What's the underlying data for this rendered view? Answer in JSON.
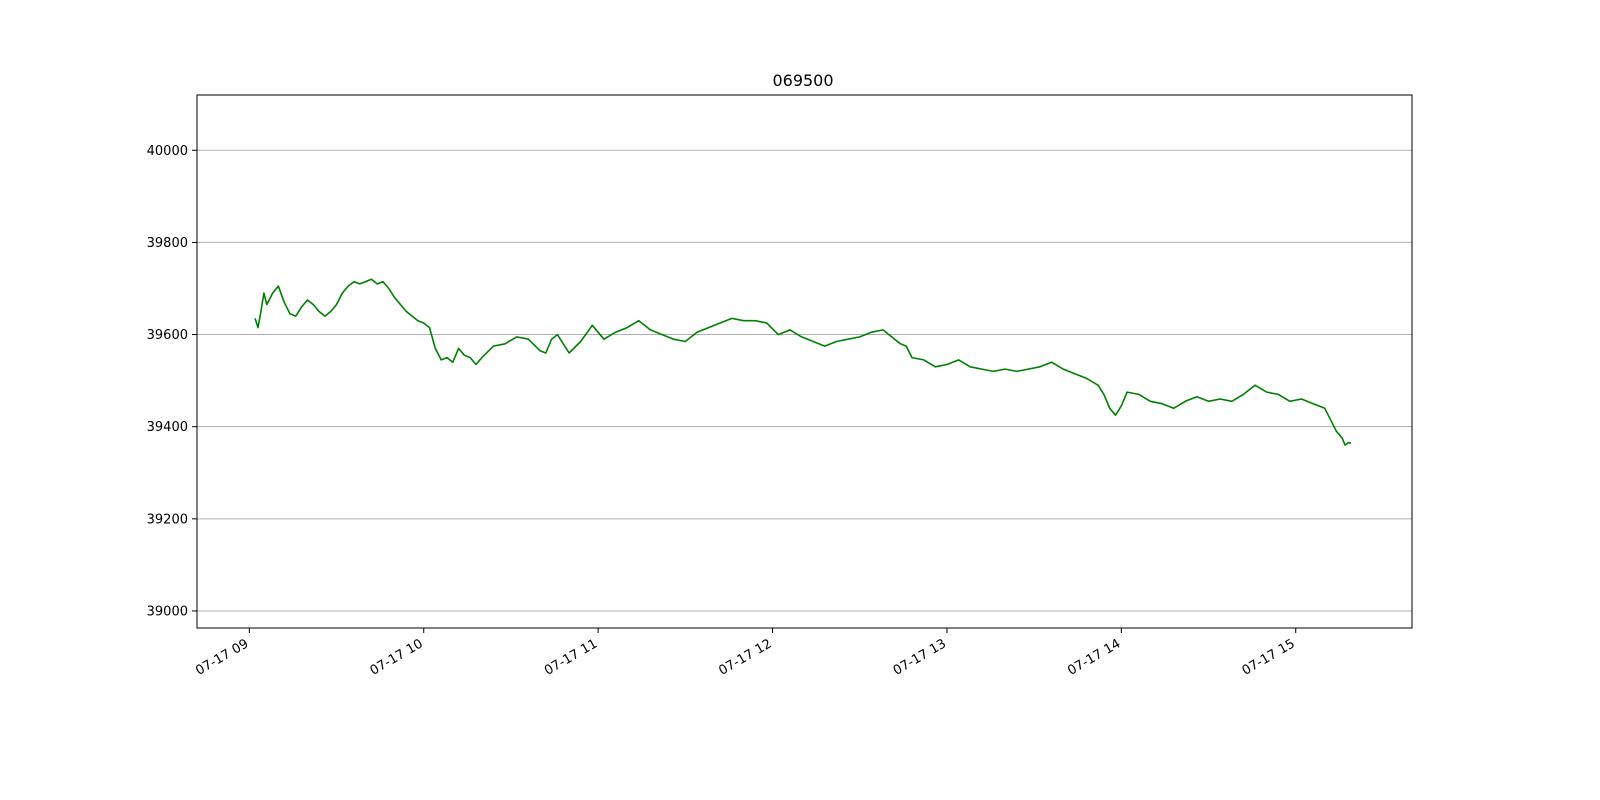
{
  "chart_data": {
    "type": "line",
    "title": "069500",
    "xlabel": "",
    "ylabel": "",
    "xlim": [
      "07-17 08:42",
      "07-17 15:40"
    ],
    "ylim": [
      38963,
      40120
    ],
    "grid": {
      "x": false,
      "y": true
    },
    "x_ticks": [
      "07-17 09",
      "07-17 10",
      "07-17 11",
      "07-17 12",
      "07-17 13",
      "07-17 14",
      "07-17 15"
    ],
    "y_ticks": [
      "39000",
      "39200",
      "39400",
      "39600",
      "39800",
      "40000"
    ],
    "colors": {
      "line": "#008000",
      "grid": "#b0b0b0",
      "axes": "#000000"
    },
    "series": [
      {
        "x": [
          "07-17 09:02",
          "07-17 09:03",
          "07-17 09:04",
          "07-17 09:05",
          "07-17 09:06",
          "07-17 09:08",
          "07-17 09:10",
          "07-17 09:12",
          "07-17 09:14",
          "07-17 09:16",
          "07-17 09:18",
          "07-17 09:20",
          "07-17 09:22",
          "07-17 09:24",
          "07-17 09:26",
          "07-17 09:28",
          "07-17 09:30",
          "07-17 09:32",
          "07-17 09:34",
          "07-17 09:36",
          "07-17 09:38",
          "07-17 09:40",
          "07-17 09:42",
          "07-17 09:44",
          "07-17 09:46",
          "07-17 09:48",
          "07-17 09:50",
          "07-17 09:52",
          "07-17 09:54",
          "07-17 09:56",
          "07-17 09:58",
          "07-17 10:00",
          "07-17 10:02",
          "07-17 10:04",
          "07-17 10:06",
          "07-17 10:08",
          "07-17 10:10",
          "07-17 10:12",
          "07-17 10:14",
          "07-17 10:16",
          "07-17 10:18",
          "07-17 10:20",
          "07-17 10:24",
          "07-17 10:28",
          "07-17 10:32",
          "07-17 10:36",
          "07-17 10:40",
          "07-17 10:42",
          "07-17 10:44",
          "07-17 10:46",
          "07-17 10:50",
          "07-17 10:54",
          "07-17 10:58",
          "07-17 11:02",
          "07-17 11:06",
          "07-17 11:10",
          "07-17 11:14",
          "07-17 11:18",
          "07-17 11:22",
          "07-17 11:26",
          "07-17 11:30",
          "07-17 11:34",
          "07-17 11:38",
          "07-17 11:42",
          "07-17 11:46",
          "07-17 11:50",
          "07-17 11:54",
          "07-17 11:58",
          "07-17 12:02",
          "07-17 12:06",
          "07-17 12:10",
          "07-17 12:14",
          "07-17 12:18",
          "07-17 12:22",
          "07-17 12:26",
          "07-17 12:30",
          "07-17 12:34",
          "07-17 12:38",
          "07-17 12:42",
          "07-17 12:44",
          "07-17 12:46",
          "07-17 12:48",
          "07-17 12:52",
          "07-17 12:56",
          "07-17 13:00",
          "07-17 13:04",
          "07-17 13:08",
          "07-17 13:12",
          "07-17 13:16",
          "07-17 13:20",
          "07-17 13:24",
          "07-17 13:28",
          "07-17 13:32",
          "07-17 13:36",
          "07-17 13:40",
          "07-17 13:44",
          "07-17 13:48",
          "07-17 13:52",
          "07-17 13:54",
          "07-17 13:56",
          "07-17 13:58",
          "07-17 14:00",
          "07-17 14:02",
          "07-17 14:06",
          "07-17 14:10",
          "07-17 14:14",
          "07-17 14:18",
          "07-17 14:22",
          "07-17 14:26",
          "07-17 14:30",
          "07-17 14:34",
          "07-17 14:38",
          "07-17 14:42",
          "07-17 14:46",
          "07-17 14:50",
          "07-17 14:54",
          "07-17 14:58",
          "07-17 15:02",
          "07-17 15:06",
          "07-17 15:08",
          "07-17 15:10",
          "07-17 15:12",
          "07-17 15:14",
          "07-17 15:16",
          "07-17 15:17",
          "07-17 15:18",
          "07-17 15:19"
        ],
        "y": [
          39635,
          39615,
          39650,
          39690,
          39665,
          39690,
          39705,
          39670,
          39645,
          39640,
          39660,
          39675,
          39665,
          39650,
          39640,
          39650,
          39665,
          39690,
          39705,
          39715,
          39710,
          39715,
          39720,
          39710,
          39715,
          39700,
          39680,
          39665,
          39650,
          39640,
          39630,
          39625,
          39615,
          39570,
          39545,
          39550,
          39540,
          39570,
          39555,
          39550,
          39535,
          39550,
          39575,
          39580,
          39595,
          39590,
          39565,
          39560,
          39590,
          39600,
          39560,
          39585,
          39620,
          39590,
          39605,
          39615,
          39630,
          39610,
          39600,
          39590,
          39585,
          39605,
          39615,
          39625,
          39635,
          39630,
          39630,
          39625,
          39600,
          39610,
          39595,
          39585,
          39575,
          39585,
          39590,
          39595,
          39605,
          39610,
          39590,
          39580,
          39575,
          39550,
          39545,
          39530,
          39535,
          39545,
          39530,
          39525,
          39520,
          39525,
          39520,
          39525,
          39530,
          39540,
          39525,
          39515,
          39505,
          39490,
          39470,
          39440,
          39425,
          39445,
          39475,
          39470,
          39455,
          39450,
          39440,
          39455,
          39465,
          39455,
          39460,
          39455,
          39470,
          39490,
          39475,
          39470,
          39455,
          39460,
          39450,
          39445,
          39440,
          39415,
          39390,
          39375,
          39360,
          39365,
          39365
        ]
      }
    ]
  }
}
